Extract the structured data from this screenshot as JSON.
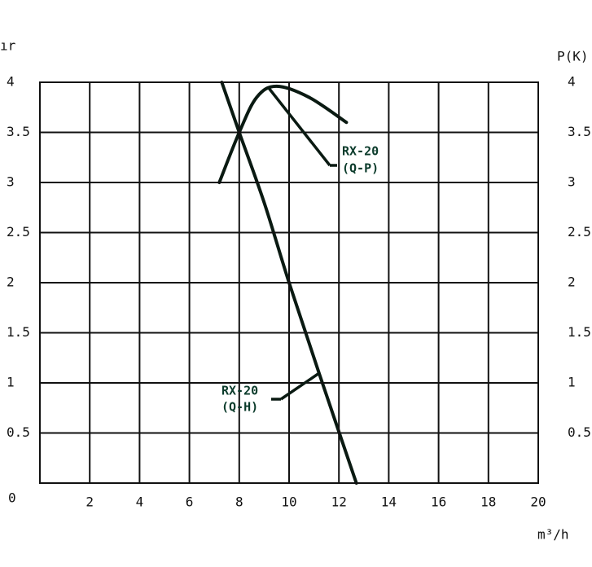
{
  "chart_data": {
    "type": "line",
    "y_label": "ır",
    "y2_label": "P(K)",
    "x_label": "m³/h",
    "xlim": [
      0,
      20
    ],
    "xticks": [
      2,
      4,
      6,
      8,
      10,
      12,
      14,
      16,
      18,
      20
    ],
    "ylim": [
      0,
      4
    ],
    "yticks": [
      0,
      0.5,
      1,
      1.5,
      2,
      2.5,
      3,
      3.5,
      4
    ],
    "y2lim": [
      0,
      4
    ],
    "y2ticks": [
      0.5,
      1,
      1.5,
      2,
      2.5,
      3,
      3.5,
      4
    ],
    "grid": true,
    "series": [
      {
        "name": "Q-H",
        "color": "#0a1a12",
        "x": [
          7.3,
          8,
          9,
          10,
          11.2,
          12.7
        ],
        "values": [
          4,
          3.5,
          2.8,
          2,
          1.1,
          0
        ]
      },
      {
        "name": "Q-P",
        "color": "#0a1a12",
        "axis": "y2",
        "x": [
          7.2,
          8,
          8.7,
          9.5,
          10.8,
          12.3
        ],
        "values": [
          3,
          3.5,
          3.85,
          3.96,
          3.85,
          3.6
        ]
      }
    ],
    "annotations": [
      {
        "line1": "RX-20",
        "line2": "(Q-P)"
      },
      {
        "line1": "RX-20",
        "line2": "(Q-H)"
      }
    ]
  }
}
